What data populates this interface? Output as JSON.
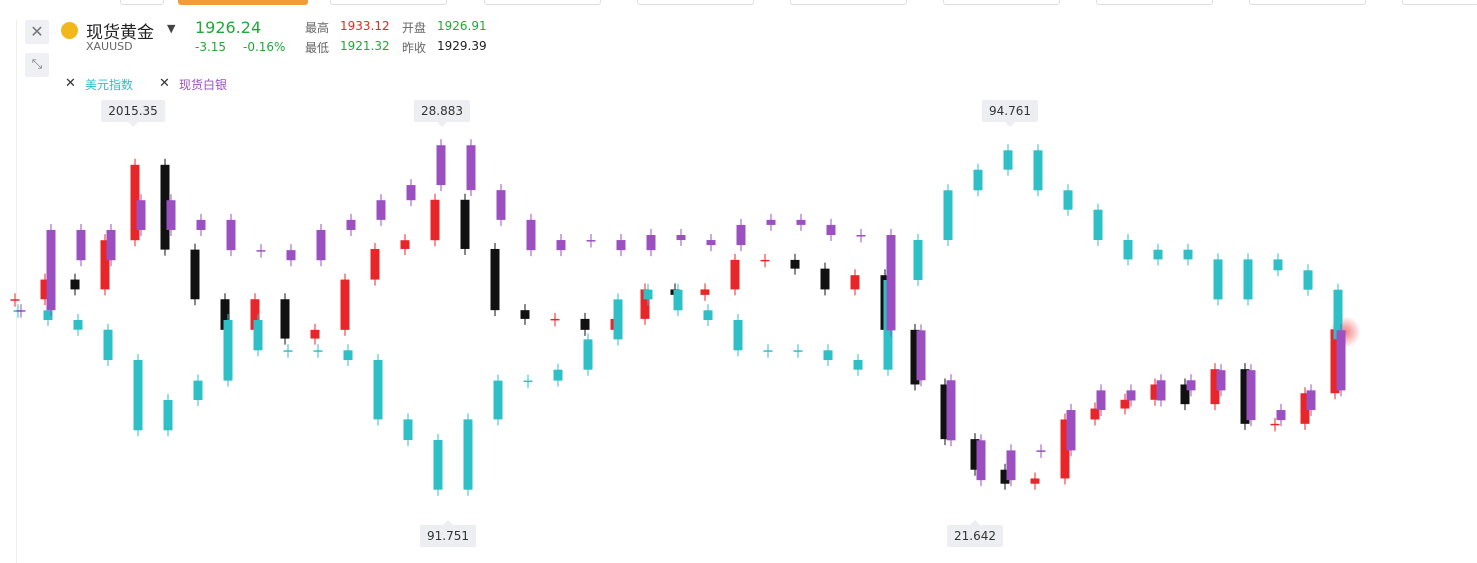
{
  "header": {
    "name": "现货黄金",
    "code": "XAUUSD",
    "price": "1926.24",
    "change": "-3.15",
    "change_pct": "-0.16%",
    "stats": [
      {
        "label": "最高",
        "value": "1933.12"
      },
      {
        "label": "开盘",
        "value": "1926.91"
      },
      {
        "label": "最低",
        "value": "1921.32"
      },
      {
        "label": "昨收",
        "value": "1929.39"
      }
    ]
  },
  "chart_data": {
    "type": "candlestick",
    "annotations": [
      "2015.35",
      "28.883",
      "94.761",
      "91.751",
      "21.642"
    ],
    "series": [
      {
        "up_color": "#e8262a",
        "down_color": "#111111",
        "ylim": [
          1839,
          2022
        ],
        "values": [
          1940,
          1949,
          1944.5,
          1967,
          2001.5,
          1962.7,
          1940,
          1926,
          1940,
          1922,
          1926,
          1949,
          1963,
          1967,
          1985.5,
          1963,
          1935,
          1931,
          1931,
          1926,
          1931,
          1944.5,
          1942,
          1944.5,
          1958,
          1958,
          1954,
          1944.5,
          1951,
          1926,
          1901,
          1876,
          1862,
          1855.6,
          1858,
          1885,
          1890,
          1894,
          1901,
          1892,
          1908,
          1883,
          1883,
          1897,
          1926.24
        ]
      },
      {
        "name": "美元指数",
        "color": "#2fbfc6",
        "ylim": [
          91.63,
          94.93
        ],
        "values": [
          93.36,
          93.28,
          93.2,
          92.95,
          92.37,
          92.62,
          92.78,
          93.28,
          93.03,
          93.03,
          93.03,
          92.95,
          92.46,
          92.29,
          91.88,
          92.46,
          92.78,
          92.78,
          92.87,
          93.12,
          93.45,
          93.53,
          93.36,
          93.28,
          93.03,
          93.03,
          93.03,
          92.95,
          92.87,
          93.61,
          93.94,
          94.35,
          94.52,
          94.68,
          94.35,
          94.19,
          93.94,
          93.78,
          93.86,
          93.78,
          93.45,
          93.78,
          93.69,
          93.53,
          93.12
        ]
      },
      {
        "name": "现货白银",
        "color": "#9b4fc0",
        "ylim": [
          21.25,
          29.18
        ],
        "values": [
          25.41,
          27.0,
          26.4,
          27.0,
          27.59,
          27.0,
          27.2,
          26.6,
          26.6,
          26.4,
          27.0,
          27.2,
          27.59,
          27.89,
          28.68,
          27.79,
          27.2,
          26.6,
          26.8,
          26.8,
          26.6,
          26.9,
          26.8,
          26.7,
          27.1,
          27.2,
          27.1,
          26.9,
          26.9,
          25.01,
          24.02,
          22.83,
          22.04,
          22.63,
          22.63,
          23.43,
          23.82,
          23.62,
          24.02,
          23.82,
          24.22,
          23.23,
          23.43,
          23.82,
          25.01
        ]
      }
    ]
  }
}
